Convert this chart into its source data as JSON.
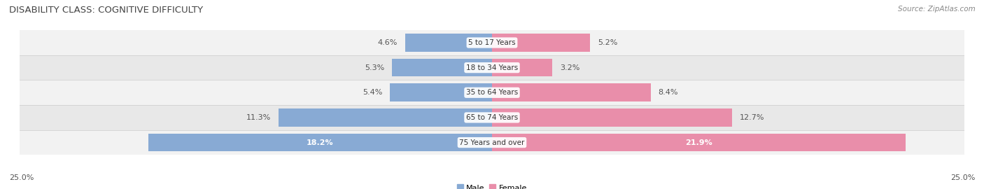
{
  "title": "DISABILITY CLASS: COGNITIVE DIFFICULTY",
  "source": "Source: ZipAtlas.com",
  "categories": [
    "5 to 17 Years",
    "18 to 34 Years",
    "35 to 64 Years",
    "65 to 74 Years",
    "75 Years and over"
  ],
  "male_values": [
    4.6,
    5.3,
    5.4,
    11.3,
    18.2
  ],
  "female_values": [
    5.2,
    3.2,
    8.4,
    12.7,
    21.9
  ],
  "max_val": 25.0,
  "male_color": "#88aad4",
  "female_color": "#e98eaa",
  "row_colors": [
    "#f2f2f2",
    "#e8e8e8"
  ],
  "divider_color": "#cccccc",
  "label_color": "#555555",
  "white_label_color": "#ffffff",
  "bar_height": 0.72,
  "title_fontsize": 9.5,
  "source_fontsize": 7.5,
  "label_fontsize": 8,
  "legend_fontsize": 8,
  "axis_label_fontsize": 8
}
